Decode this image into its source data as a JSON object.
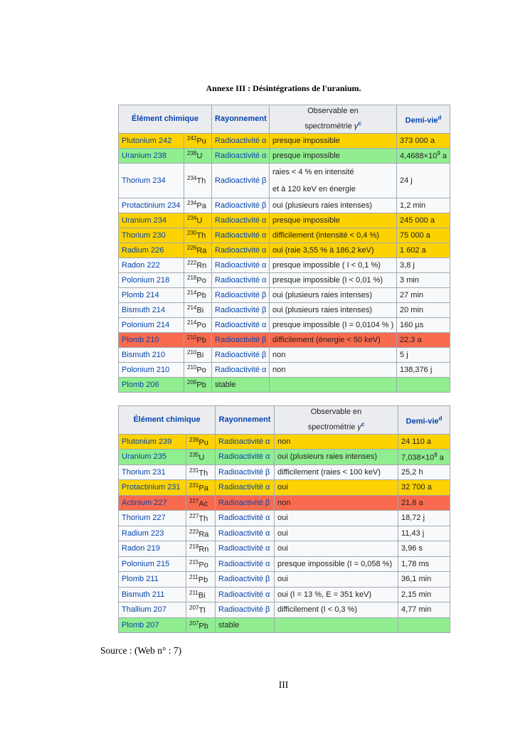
{
  "header": {
    "title": "Annexe III : Désintégrations de l'uranium."
  },
  "table_header": {
    "element": "Élément chimique",
    "radiation": "Rayonnement",
    "observable": [
      "Observable en",
      "spectrométrie"
    ],
    "gamma": "γ",
    "observable_note": "c",
    "half_life": "Demi-vie",
    "half_life_note": "d"
  },
  "tables": [
    {
      "rows": [
        {
          "highlight": "yellow",
          "element": "Plutonium 242",
          "mass": "242",
          "symbol": "Pu",
          "radiation": "Radioactivité α",
          "observable": [
            "presque impossible"
          ],
          "half_life": {
            "text": "373 000 a"
          }
        },
        {
          "highlight": "green",
          "element": "Uranium 238",
          "mass": "238",
          "symbol": "U",
          "radiation": "Radioactivité α",
          "observable": [
            "presque impossible"
          ],
          "half_life": {
            "text": "4,4688×10",
            "exponent": "9",
            "unit": "a"
          }
        },
        {
          "highlight": "white",
          "element": "Thorium 234",
          "mass": "234",
          "symbol": "Th",
          "radiation": "Radioactivité β",
          "observable": [
            "raies < 4 % en intensité",
            "et à 120 keV en énergie"
          ],
          "half_life": {
            "text": "24 j"
          }
        },
        {
          "highlight": "white",
          "element": "Protactinium 234",
          "mass": "234",
          "symbol": "Pa",
          "radiation": "Radioactivité β",
          "observable": [
            "oui (plusieurs raies intenses)"
          ],
          "half_life": {
            "text": "1,2 min"
          }
        },
        {
          "highlight": "yellow",
          "element": "Uranium 234",
          "mass": "234",
          "symbol": "U",
          "radiation": "Radioactivité α",
          "observable": [
            "presque impossible"
          ],
          "half_life": {
            "text": "245 000 a"
          }
        },
        {
          "highlight": "yellow",
          "element": "Thorium 230",
          "mass": "230",
          "symbol": "Th",
          "radiation": "Radioactivité α",
          "observable": [
            "difficilement (intensité < 0,4 %)"
          ],
          "half_life": {
            "text": "75 000 a"
          }
        },
        {
          "highlight": "yellow",
          "element": "Radium 226",
          "mass": "226",
          "symbol": "Ra",
          "radiation": "Radioactivité α",
          "observable": [
            "oui (raie 3,55 % à 186,2 keV)"
          ],
          "half_life": {
            "text": "1 602 a"
          }
        },
        {
          "highlight": "white",
          "element": "Radon 222",
          "mass": "222",
          "symbol": "Rn",
          "radiation": "Radioactivité α",
          "observable": [
            "presque impossible ( I < 0,1 %)"
          ],
          "half_life": {
            "text": "3,8 j"
          }
        },
        {
          "highlight": "white",
          "element": "Polonium 218",
          "mass": "218",
          "symbol": "Po",
          "radiation": "Radioactivité α",
          "observable": [
            "presque impossible (I < 0,01 %)"
          ],
          "half_life": {
            "text": "3 min"
          }
        },
        {
          "highlight": "white",
          "element": "Plomb 214",
          "mass": "214",
          "symbol": "Pb",
          "radiation": "Radioactivité β",
          "observable": [
            "oui (plusieurs raies intenses)"
          ],
          "half_life": {
            "text": "27 min"
          }
        },
        {
          "highlight": "white",
          "element": "Bismuth 214",
          "mass": "214",
          "symbol": "Bi",
          "radiation": "Radioactivité β",
          "observable": [
            "oui (plusieurs raies intenses)"
          ],
          "half_life": {
            "text": "20 min"
          }
        },
        {
          "highlight": "white",
          "element": "Polonium 214",
          "mass": "214",
          "symbol": "Po",
          "radiation": "Radioactivité α",
          "observable": [
            "presque impossible (I = 0,0104 % )"
          ],
          "half_life": {
            "text": "160 µs"
          }
        },
        {
          "highlight": "red",
          "element": "Plomb 210",
          "mass": "210",
          "symbol": "Pb",
          "radiation": "Radioactivité β",
          "observable": [
            "difficilement (énergie < 50 keV)"
          ],
          "half_life": {
            "text": "22,3 a"
          }
        },
        {
          "highlight": "white",
          "element": "Bismuth 210",
          "mass": "210",
          "symbol": "Bi",
          "radiation": "Radioactivité β",
          "observable": [
            "non"
          ],
          "half_life": {
            "text": "5 j"
          }
        },
        {
          "highlight": "white",
          "element": "Polonium 210",
          "mass": "210",
          "symbol": "Po",
          "radiation": "Radioactivité α",
          "observable": [
            "non"
          ],
          "half_life": {
            "text": "138,376 j"
          }
        },
        {
          "highlight": "green",
          "element": "Plomb 206",
          "mass": "206",
          "symbol": "Pb",
          "status": "stable"
        }
      ]
    },
    {
      "rows": [
        {
          "highlight": "yellow",
          "element": "Plutonium 239",
          "mass": "239",
          "symbol": "Pu",
          "radiation": "Radioactivité α",
          "observable": [
            "non"
          ],
          "half_life": {
            "text": "24 110 a"
          }
        },
        {
          "highlight": "green",
          "element": "Uranium 235",
          "mass": "235",
          "symbol": "U",
          "radiation": "Radioactivité α",
          "observable": [
            "oui (plusieurs raies intenses)"
          ],
          "half_life": {
            "text": "7,038×10",
            "exponent": "8",
            "unit": "a"
          }
        },
        {
          "highlight": "white",
          "element": "Thorium 231",
          "mass": "231",
          "symbol": "Th",
          "radiation": "Radioactivité β",
          "observable": [
            "difficilement (raies < 100 keV)"
          ],
          "half_life": {
            "text": "25,2 h"
          }
        },
        {
          "highlight": "yellow",
          "element": "Protactinium 231",
          "mass": "231",
          "symbol": "Pa",
          "radiation": "Radioactivité α",
          "observable": [
            "oui"
          ],
          "half_life": {
            "text": "32 700 a"
          }
        },
        {
          "highlight": "red",
          "element": "Actinium 227",
          "mass": "227",
          "symbol": "Ac",
          "radiation": "Radioactivité β",
          "observable": [
            "non"
          ],
          "half_life": {
            "text": "21,8 a"
          }
        },
        {
          "highlight": "white",
          "element": "Thorium 227",
          "mass": "227",
          "symbol": "Th",
          "radiation": "Radioactivité α",
          "observable": [
            "oui"
          ],
          "half_life": {
            "text": "18,72 j"
          }
        },
        {
          "highlight": "white",
          "element": "Radium 223",
          "mass": "223",
          "symbol": "Ra",
          "radiation": "Radioactivité α",
          "observable": [
            "oui"
          ],
          "half_life": {
            "text": "11,43 j"
          }
        },
        {
          "highlight": "white",
          "element": "Radon 219",
          "mass": "219",
          "symbol": "Rn",
          "radiation": "Radioactivité α",
          "observable": [
            "oui"
          ],
          "half_life": {
            "text": "3,96 s"
          }
        },
        {
          "highlight": "white",
          "element": "Polonium 215",
          "mass": "215",
          "symbol": "Po",
          "radiation": "Radioactivité α",
          "observable": [
            "presque impossible (I = 0,058 %)"
          ],
          "half_life": {
            "text": "1,78 ms"
          }
        },
        {
          "highlight": "white",
          "element": "Plomb 211",
          "mass": "211",
          "symbol": "Pb",
          "radiation": "Radioactivité β",
          "observable": [
            "oui"
          ],
          "half_life": {
            "text": "36,1 min"
          }
        },
        {
          "highlight": "white",
          "element": "Bismuth 211",
          "mass": "211",
          "symbol": "Bi",
          "radiation": "Radioactivité α",
          "observable": [
            "oui (I = 13 %, E = 351 keV)"
          ],
          "half_life": {
            "text": "2,15 min"
          }
        },
        {
          "highlight": "white",
          "element": "Thallium 207",
          "mass": "207",
          "symbol": "Tl",
          "radiation": "Radioactivité β",
          "observable": [
            "difficilement (I < 0,3 %)"
          ],
          "half_life": {
            "text": "4,77 min"
          }
        },
        {
          "highlight": "green",
          "element": "Plomb 207",
          "mass": "207",
          "symbol": "Pb",
          "status": "stable"
        }
      ]
    }
  ],
  "footer": {
    "source": "Source : (Web n° : 7)",
    "page_number": "III"
  }
}
